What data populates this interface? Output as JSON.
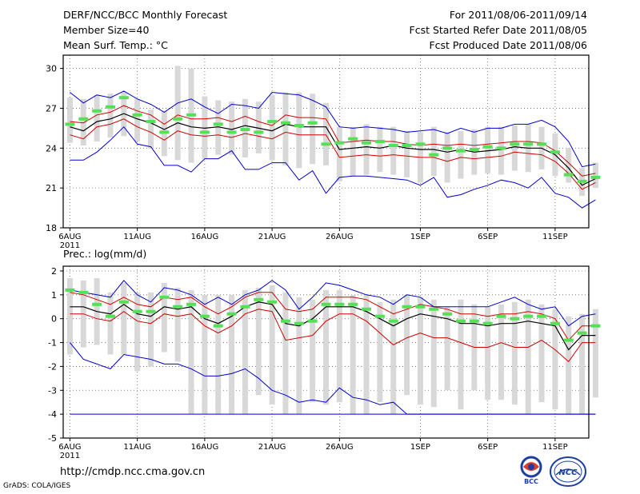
{
  "header": {
    "title": "DERF/NCC/BCC Monthly Forecast",
    "member_size": "Member Size=40",
    "variable": "Mean Surf. Temp.: °C",
    "for_range": "For 2011/08/06-2011/09/14",
    "started_refer": "Fcst Started Refer Date 2011/08/05",
    "produced": "Fcst Produced Date 2011/08/06"
  },
  "footer": {
    "url": "http://cmdp.ncc.cma.gov.cn",
    "credit": "GrADS: COLA/IGES",
    "logo_left_text": "BCC",
    "logo_right_text": "NCC"
  },
  "colors": {
    "mean": "#000000",
    "inner": "#d00000",
    "outer": "#0000d0",
    "box": "#d8d8d8",
    "median": "#55e055",
    "grid": "#666666"
  },
  "chart_data": [
    {
      "type": "line",
      "title": "Mean Surf. Temp.: °C",
      "x_tick_labels": [
        "6AUG",
        "11AUG",
        "16AUG",
        "21AUG",
        "26AUG",
        "1SEP",
        "6SEP",
        "11SEP"
      ],
      "x_tick_days": [
        0,
        5,
        10,
        15,
        20,
        26,
        31,
        36
      ],
      "x_year_label": "2011",
      "x_range": [
        -0.5,
        38.5
      ],
      "ylim": [
        18,
        31
      ],
      "yticks": [
        18,
        21,
        24,
        27,
        30
      ],
      "ytick_labels": [
        "18",
        "21",
        "24",
        "27",
        "30"
      ],
      "series": [
        {
          "name": "ensemble mean",
          "values": [
            25.6,
            25.3,
            26.0,
            26.2,
            26.6,
            26.2,
            25.9,
            25.4,
            25.9,
            25.6,
            25.5,
            25.6,
            25.4,
            25.7,
            25.5,
            25.3,
            25.8,
            25.6,
            25.6,
            25.6,
            23.9,
            24.0,
            24.1,
            24.0,
            24.2,
            24.0,
            23.9,
            23.9,
            23.7,
            23.9,
            23.7,
            23.8,
            23.9,
            24.1,
            24.0,
            24.0,
            23.5,
            22.5,
            21.2,
            21.7
          ]
        },
        {
          "name": "upper inner",
          "values": [
            26.0,
            25.9,
            26.5,
            26.7,
            27.2,
            26.8,
            26.5,
            25.8,
            26.5,
            26.2,
            26.2,
            26.3,
            26.0,
            26.4,
            26.0,
            25.7,
            26.5,
            26.3,
            26.3,
            26.2,
            24.4,
            24.5,
            24.6,
            24.5,
            24.5,
            24.3,
            24.2,
            24.3,
            24.2,
            24.3,
            24.2,
            24.3,
            24.4,
            24.5,
            24.5,
            24.4,
            23.8,
            22.9,
            21.9,
            22.1
          ]
        },
        {
          "name": "lower inner",
          "values": [
            25.0,
            24.7,
            25.6,
            25.8,
            26.2,
            25.6,
            25.2,
            24.6,
            25.3,
            25.0,
            24.9,
            25.0,
            24.8,
            25.1,
            24.9,
            24.7,
            25.2,
            25.0,
            25.0,
            25.0,
            23.3,
            23.4,
            23.5,
            23.4,
            23.5,
            23.4,
            23.3,
            23.3,
            23.0,
            23.3,
            23.2,
            23.3,
            23.4,
            23.7,
            23.6,
            23.5,
            23.0,
            22.1,
            20.9,
            21.4
          ]
        },
        {
          "name": "upper outer",
          "values": [
            28.2,
            27.4,
            28.0,
            27.8,
            28.3,
            27.7,
            27.3,
            26.7,
            27.4,
            27.7,
            27.1,
            26.6,
            27.3,
            27.2,
            27.0,
            28.2,
            28.1,
            28.0,
            27.6,
            27.1,
            25.6,
            25.5,
            25.6,
            25.5,
            25.4,
            25.2,
            25.3,
            25.4,
            25.1,
            25.5,
            25.2,
            25.5,
            25.5,
            25.8,
            25.8,
            26.1,
            25.6,
            24.5,
            22.6,
            22.8
          ]
        },
        {
          "name": "lower outer",
          "values": [
            23.1,
            23.1,
            23.7,
            24.6,
            25.6,
            24.3,
            24.1,
            22.7,
            22.7,
            22.2,
            23.2,
            23.2,
            23.8,
            22.4,
            22.4,
            22.9,
            22.9,
            21.6,
            22.3,
            20.6,
            21.8,
            21.9,
            21.9,
            21.8,
            21.7,
            21.6,
            21.2,
            21.8,
            20.3,
            20.5,
            20.9,
            21.2,
            21.6,
            21.4,
            21.0,
            21.8,
            20.6,
            20.3,
            19.5,
            20.1
          ]
        },
        {
          "name": "median",
          "values": [
            25.8,
            26.2,
            26.8,
            27.1,
            27.8,
            26.5,
            26.0,
            25.2,
            26.2,
            26.5,
            25.2,
            25.8,
            25.2,
            25.4,
            25.2,
            26.0,
            25.9,
            25.7,
            25.9,
            24.3,
            24.4,
            24.7,
            24.4,
            24.5,
            24.2,
            24.2,
            24.3,
            23.5,
            24.0,
            23.8,
            23.9,
            24.1,
            24.0,
            24.3,
            24.3,
            24.3,
            23.7,
            22.0,
            21.5,
            21.8
          ]
        }
      ],
      "box_top": [
        27.8,
        27.7,
        28.0,
        28.1,
        28.2,
        27.7,
        26.9,
        26.8,
        30.2,
        30.0,
        27.9,
        27.6,
        27.5,
        27.7,
        27.5,
        28.0,
        28.2,
        28.2,
        28.1,
        27.4,
        25.6,
        25.6,
        25.8,
        25.6,
        25.6,
        25.3,
        25.2,
        25.6,
        25.2,
        25.3,
        25.4,
        25.6,
        25.6,
        25.7,
        25.8,
        25.6,
        25.1,
        24.0,
        22.5,
        22.9
      ],
      "box_bottom": [
        24.4,
        24.2,
        24.5,
        24.8,
        24.9,
        24.5,
        24.0,
        23.4,
        23.1,
        22.9,
        23.2,
        23.5,
        23.5,
        23.3,
        23.6,
        23.1,
        22.7,
        22.5,
        22.8,
        22.7,
        21.5,
        21.9,
        22.0,
        22.2,
        22.0,
        21.8,
        21.4,
        21.9,
        21.4,
        21.7,
        22.0,
        22.1,
        22.0,
        22.3,
        22.2,
        22.4,
        21.9,
        21.4,
        20.4,
        21.0
      ]
    },
    {
      "type": "line",
      "title": "Prec.: log(mm/d)",
      "x_tick_labels": [
        "6AUG",
        "11AUG",
        "16AUG",
        "21AUG",
        "26AUG",
        "1SEP",
        "6SEP",
        "11SEP"
      ],
      "x_tick_days": [
        0,
        5,
        10,
        15,
        20,
        26,
        31,
        36
      ],
      "x_year_label": "2011",
      "x_range": [
        -0.5,
        38.5
      ],
      "ylim": [
        -5,
        2.2
      ],
      "yticks": [
        -5,
        -4,
        -3,
        -2,
        -1,
        0,
        1,
        2
      ],
      "ytick_labels": [
        "-5",
        "-4",
        "-3",
        "-2",
        "-1",
        "0",
        "1",
        "2"
      ],
      "series": [
        {
          "name": "ensemble mean",
          "values": [
            0.5,
            0.5,
            0.3,
            0.2,
            0.6,
            0.2,
            0.1,
            0.5,
            0.4,
            0.5,
            0.0,
            -0.2,
            0.1,
            0.5,
            0.7,
            0.6,
            -0.2,
            -0.3,
            0.0,
            0.5,
            0.5,
            0.5,
            0.3,
            0.0,
            -0.3,
            0.0,
            0.2,
            0.1,
            0.0,
            -0.2,
            -0.2,
            -0.3,
            -0.2,
            -0.2,
            -0.1,
            -0.2,
            -0.3,
            -1.3,
            -0.7,
            -0.7
          ]
        },
        {
          "name": "upper inner",
          "values": [
            1.1,
            1.0,
            0.8,
            0.6,
            0.9,
            0.6,
            0.5,
            0.9,
            0.8,
            0.9,
            0.5,
            0.2,
            0.5,
            0.9,
            1.1,
            1.1,
            0.4,
            0.3,
            0.4,
            0.9,
            0.9,
            0.9,
            0.8,
            0.5,
            0.2,
            0.4,
            0.6,
            0.5,
            0.4,
            0.2,
            0.2,
            0.1,
            0.2,
            0.2,
            0.3,
            0.2,
            0.0,
            -0.9,
            -0.3,
            -0.3
          ]
        },
        {
          "name": "lower inner",
          "values": [
            0.2,
            0.2,
            0.0,
            -0.1,
            0.3,
            -0.1,
            -0.2,
            0.2,
            0.1,
            0.2,
            -0.3,
            -0.6,
            -0.3,
            0.2,
            0.4,
            0.3,
            -0.9,
            -0.8,
            -0.7,
            -0.1,
            0.2,
            0.2,
            -0.1,
            -0.6,
            -1.1,
            -0.8,
            -0.6,
            -0.8,
            -0.8,
            -1.0,
            -1.2,
            -1.2,
            -1.0,
            -1.2,
            -1.2,
            -0.9,
            -1.3,
            -1.8,
            -1.0,
            -1.0
          ]
        },
        {
          "name": "upper outer",
          "values": [
            1.2,
            1.1,
            1.0,
            0.9,
            1.6,
            1.0,
            0.7,
            1.3,
            1.2,
            1.0,
            0.6,
            0.9,
            0.6,
            1.0,
            1.2,
            1.6,
            1.2,
            0.4,
            0.9,
            1.5,
            1.4,
            1.2,
            1.0,
            0.9,
            0.6,
            1.0,
            0.9,
            0.5,
            0.5,
            0.5,
            0.5,
            0.5,
            0.7,
            0.9,
            0.6,
            0.4,
            0.5,
            -0.3,
            0.1,
            0.2
          ]
        },
        {
          "name": "lower outer",
          "values": [
            -1.0,
            -1.7,
            -1.9,
            -2.1,
            -1.5,
            -1.6,
            -1.7,
            -1.9,
            -1.9,
            -2.1,
            -2.4,
            -2.4,
            -2.3,
            -2.1,
            -2.5,
            -3.0,
            -3.2,
            -3.5,
            -3.4,
            -3.5,
            -2.9,
            -3.3,
            -3.4,
            -3.6,
            -3.5,
            -4.0,
            -4.0,
            -4.0,
            -4.0,
            -4.0,
            -4.0,
            -4.0,
            -4.0,
            -4.0,
            -4.0,
            -4.0,
            -4.0,
            -4.0,
            -4.0,
            -4.0
          ]
        },
        {
          "name": "minimum",
          "values": [
            -4,
            -4,
            -4,
            -4,
            -4,
            -4,
            -4,
            -4,
            -4,
            -4,
            -4,
            -4,
            -4,
            -4,
            -4,
            -4,
            -4,
            -4,
            -4,
            -4,
            -4,
            -4,
            -4,
            -4,
            -4,
            -4,
            -4,
            -4,
            -4,
            -4,
            -4,
            -4,
            -4,
            -4,
            -4,
            -4,
            -4,
            -4,
            -4,
            -4
          ]
        },
        {
          "name": "median",
          "values": [
            1.2,
            1.1,
            0.6,
            0.1,
            0.7,
            0.3,
            0.3,
            0.9,
            0.5,
            0.6,
            0.1,
            -0.3,
            0.2,
            0.5,
            0.8,
            0.7,
            -0.1,
            -0.2,
            -0.1,
            0.6,
            0.6,
            0.6,
            0.4,
            0.1,
            -0.1,
            0.5,
            0.5,
            0.4,
            0.2,
            -0.1,
            -0.1,
            -0.2,
            0.1,
            0.0,
            0.1,
            0.1,
            -0.2,
            -0.9,
            -0.6,
            -0.3
          ]
        }
      ],
      "box_top": [
        1.7,
        1.6,
        1.7,
        1.1,
        1.5,
        1.1,
        1.1,
        1.5,
        1.3,
        1.2,
        1.0,
        1.0,
        1.0,
        1.2,
        1.3,
        1.4,
        1.1,
        0.9,
        0.8,
        1.2,
        1.2,
        1.0,
        1.0,
        0.7,
        0.8,
        1.0,
        0.9,
        0.8,
        0.5,
        0.8,
        0.6,
        0.5,
        0.6,
        0.7,
        0.8,
        0.6,
        0.4,
        0.1,
        0.2,
        0.4
      ],
      "box_bottom": [
        -1.5,
        -1.2,
        -1.1,
        -1.5,
        -1.5,
        -2.2,
        -2.0,
        -1.4,
        -1.8,
        -4.0,
        -4.0,
        -4.0,
        -4.0,
        -4.0,
        -3.2,
        -3.6,
        -4.0,
        -4.0,
        -3.5,
        -3.6,
        -3.5,
        -4.0,
        -4.0,
        -3.5,
        -4.0,
        -3.2,
        -3.6,
        -3.7,
        -3.0,
        -3.8,
        -3.0,
        -3.4,
        -3.4,
        -3.6,
        -4.0,
        -3.5,
        -3.8,
        -4.0,
        -4.0,
        -3.3
      ]
    }
  ]
}
